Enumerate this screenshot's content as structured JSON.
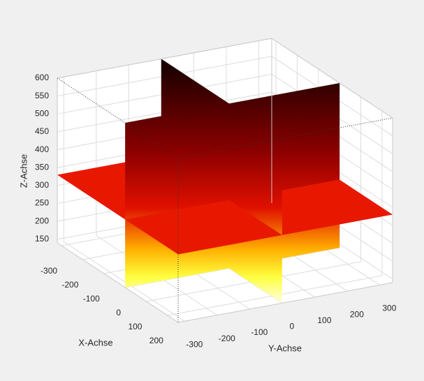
{
  "chart_data": {
    "type": "slice3d",
    "colormap": "hot",
    "xlabel": "X-Achse",
    "ylabel": "Y-Achse",
    "zlabel": "Z-Achse",
    "xlim": [
      -320,
      250
    ],
    "ylim": [
      -320,
      340
    ],
    "zlim": [
      140,
      600
    ],
    "xticks": [
      -300,
      -200,
      -100,
      0,
      100,
      200
    ],
    "yticks": [
      -300,
      -200,
      -100,
      0,
      100,
      200,
      300
    ],
    "zticks": [
      150,
      200,
      250,
      300,
      350,
      400,
      450,
      500,
      550,
      600
    ],
    "slices": {
      "x": [
        0
      ],
      "y": [
        0
      ],
      "z": [
        330
      ]
    },
    "grid": true
  }
}
